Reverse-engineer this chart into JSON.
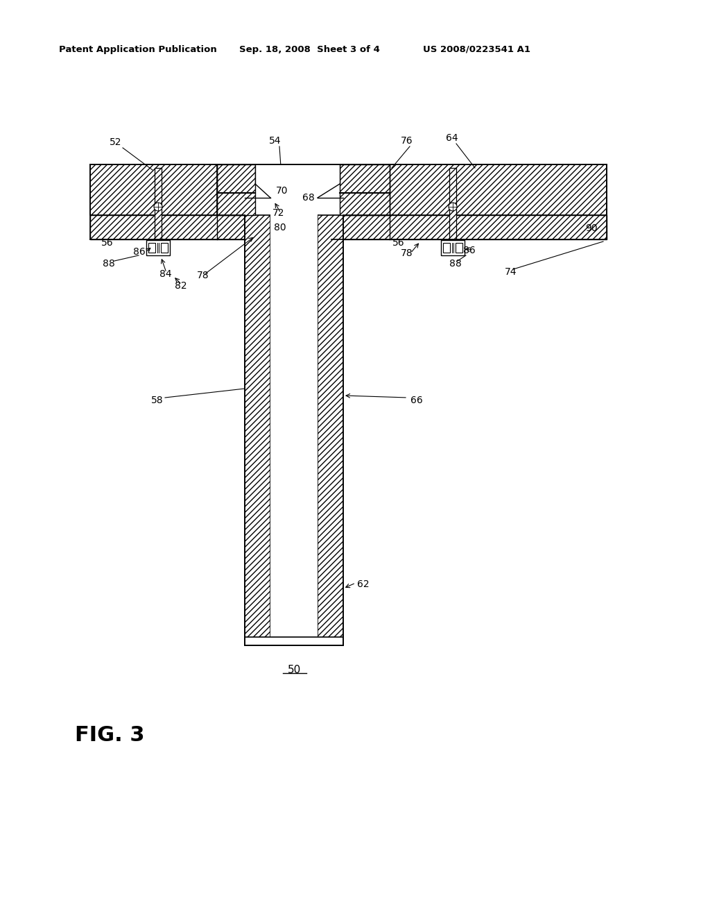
{
  "bg_color": "#ffffff",
  "header_left": "Patent Application Publication",
  "header_mid": "Sep. 18, 2008  Sheet 3 of 4",
  "header_right": "US 2008/0223541 A1",
  "fig_label": "FIG. 3",
  "fig_number": "50"
}
